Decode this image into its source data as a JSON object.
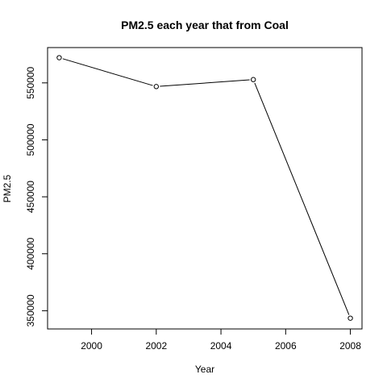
{
  "chart_data": {
    "type": "line",
    "title": "PM2.5 each year that from Coal",
    "xlabel": "Year",
    "ylabel": "PM2.5",
    "x": [
      1999,
      2002,
      2005,
      2008
    ],
    "series": [
      {
        "values": [
          572126,
          546789,
          552881,
          343432
        ]
      }
    ],
    "xlim": [
      1998.64,
      2008.36
    ],
    "ylim": [
      334000,
      581000
    ],
    "xticks": [
      2000,
      2002,
      2004,
      2006,
      2008
    ],
    "yticks": [
      350000,
      400000,
      450000,
      500000,
      550000
    ],
    "xtick_labels": [
      "2000",
      "2002",
      "2004",
      "2006",
      "2008"
    ],
    "ytick_labels": [
      "350000",
      "400000",
      "450000",
      "500000",
      "550000"
    ],
    "grid": false,
    "markers": "open-circle",
    "line_color": "#000000"
  }
}
